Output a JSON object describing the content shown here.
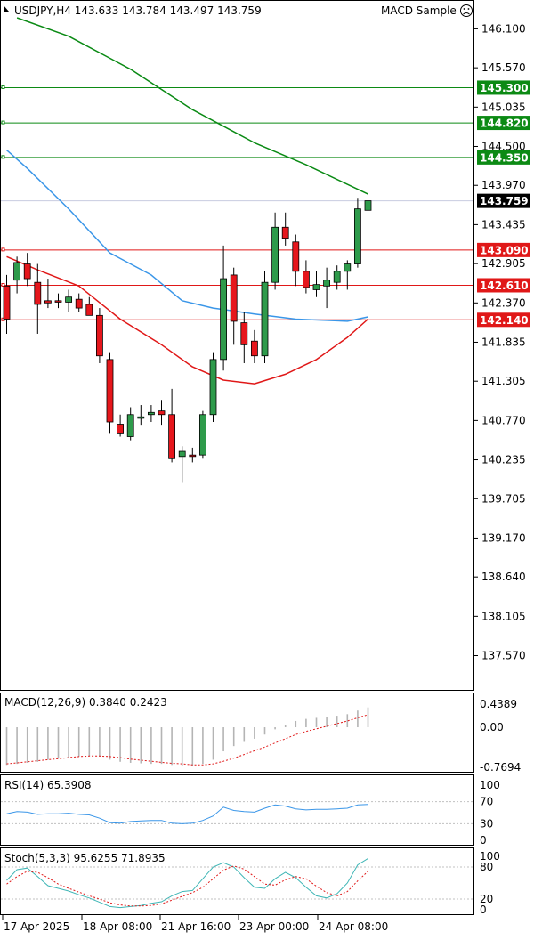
{
  "header": {
    "symbol_line": "USDJPY,H4  143.633 143.784 143.497 143.759",
    "expert_label": "MACD Sample",
    "face_icon": "frown-face-icon"
  },
  "colors": {
    "bull": "#2e9b4b",
    "bear": "#e6161c",
    "ma_green": "#0a8a14",
    "ma_blue": "#3a96e8",
    "ma_red": "#e01818",
    "level_green": "#0c8a14",
    "level_red": "#e01818",
    "last_tag_bg": "#000000",
    "macd_signal": "#e01818",
    "rsi_line": "#3a96e8",
    "stoch_main": "#3fb6b6",
    "stoch_signal": "#e01818"
  },
  "price_axis": {
    "ticks": [
      "146.100",
      "145.570",
      "145.035",
      "144.500",
      "143.970",
      "143.435",
      "142.905",
      "142.370",
      "141.835",
      "141.305",
      "140.770",
      "140.235",
      "139.705",
      "139.170",
      "138.640",
      "138.105",
      "137.570"
    ],
    "range": [
      137.14,
      146.42
    ]
  },
  "levels": {
    "green": [
      "145.300",
      "144.820",
      "144.350"
    ],
    "red": [
      "143.090",
      "142.610",
      "142.140"
    ],
    "last_price": "143.759"
  },
  "time_axis": [
    "17 Apr 2025",
    "18 Apr 08:00",
    "21 Apr 16:00",
    "23 Apr 00:00",
    "24 Apr 08:00"
  ],
  "macd_panel": {
    "label": "MACD(12,26,9) 0.3840 0.2423",
    "ticks": [
      "0.4389",
      "0.00",
      "-0.7694"
    ],
    "range": [
      -0.8,
      0.46
    ]
  },
  "rsi_panel": {
    "label": "RSI(14) 65.3908",
    "ticks": [
      "100",
      "70",
      "30",
      "0"
    ],
    "range": [
      0,
      100
    ]
  },
  "stoch_panel": {
    "label": "Stoch(5,3,3) 95.6255 71.8935",
    "ticks": [
      "100",
      "80",
      "20",
      "0"
    ],
    "range": [
      0,
      100
    ]
  },
  "chart_data": {
    "type": "candlestick",
    "title": "USDJPY,H4",
    "ohlc": [
      [
        142.6,
        142.75,
        141.95,
        142.15
      ],
      [
        142.68,
        143.0,
        142.5,
        142.92
      ],
      [
        142.9,
        143.05,
        142.6,
        142.7
      ],
      [
        142.65,
        142.9,
        141.95,
        142.35
      ],
      [
        142.4,
        142.7,
        142.3,
        142.37
      ],
      [
        142.4,
        142.5,
        142.3,
        142.38
      ],
      [
        142.38,
        142.55,
        142.25,
        142.45
      ],
      [
        142.42,
        142.5,
        142.25,
        142.3
      ],
      [
        142.35,
        142.45,
        142.2,
        142.2
      ],
      [
        142.2,
        142.3,
        141.55,
        141.65
      ],
      [
        141.6,
        141.7,
        140.6,
        140.75
      ],
      [
        140.72,
        140.85,
        140.55,
        140.6
      ],
      [
        140.55,
        140.95,
        140.5,
        140.85
      ],
      [
        140.8,
        140.98,
        140.7,
        140.82
      ],
      [
        140.85,
        140.98,
        140.75,
        140.88
      ],
      [
        140.9,
        141.05,
        140.7,
        140.85
      ],
      [
        140.85,
        141.2,
        140.2,
        140.25
      ],
      [
        140.28,
        140.42,
        139.92,
        140.35
      ],
      [
        140.3,
        140.4,
        140.2,
        140.28
      ],
      [
        140.3,
        140.9,
        140.25,
        140.85
      ],
      [
        140.85,
        141.7,
        140.75,
        141.6
      ],
      [
        141.6,
        143.15,
        141.45,
        142.7
      ],
      [
        142.75,
        142.85,
        141.8,
        142.12
      ],
      [
        142.1,
        142.25,
        141.55,
        141.8
      ],
      [
        141.85,
        142.0,
        141.55,
        141.65
      ],
      [
        141.65,
        142.8,
        141.55,
        142.65
      ],
      [
        142.65,
        143.6,
        142.55,
        143.4
      ],
      [
        143.4,
        143.6,
        143.15,
        143.25
      ],
      [
        143.2,
        143.3,
        142.6,
        142.8
      ],
      [
        142.8,
        142.95,
        142.5,
        142.58
      ],
      [
        142.55,
        142.8,
        142.45,
        142.62
      ],
      [
        142.6,
        142.85,
        142.3,
        142.68
      ],
      [
        142.65,
        142.88,
        142.55,
        142.8
      ],
      [
        142.8,
        142.95,
        142.55,
        142.9
      ],
      [
        142.9,
        143.8,
        142.85,
        143.65
      ],
      [
        143.63,
        143.78,
        143.5,
        143.76
      ]
    ],
    "ma_slow_green": [
      [
        1,
        146.25
      ],
      [
        6,
        146.0
      ],
      [
        12,
        145.55
      ],
      [
        18,
        145.0
      ],
      [
        24,
        144.55
      ],
      [
        29,
        144.25
      ],
      [
        35,
        143.85
      ]
    ],
    "ma_mid_blue": [
      [
        0,
        144.45
      ],
      [
        2,
        144.2
      ],
      [
        6,
        143.65
      ],
      [
        10,
        143.05
      ],
      [
        14,
        142.75
      ],
      [
        17,
        142.4
      ],
      [
        20,
        142.3
      ],
      [
        24,
        142.22
      ],
      [
        28,
        142.15
      ],
      [
        33,
        142.12
      ],
      [
        35,
        142.18
      ]
    ],
    "ma_fast_red": [
      [
        0,
        143.0
      ],
      [
        3,
        142.82
      ],
      [
        7,
        142.6
      ],
      [
        11,
        142.15
      ],
      [
        15,
        141.8
      ],
      [
        18,
        141.5
      ],
      [
        21,
        141.32
      ],
      [
        24,
        141.27
      ],
      [
        27,
        141.4
      ],
      [
        30,
        141.6
      ],
      [
        33,
        141.9
      ],
      [
        35,
        142.15
      ]
    ],
    "macd_hist": [
      -0.72,
      -0.7,
      -0.68,
      -0.66,
      -0.62,
      -0.6,
      -0.58,
      -0.56,
      -0.55,
      -0.56,
      -0.62,
      -0.66,
      -0.68,
      -0.69,
      -0.7,
      -0.7,
      -0.72,
      -0.74,
      -0.74,
      -0.7,
      -0.62,
      -0.46,
      -0.36,
      -0.28,
      -0.22,
      -0.14,
      -0.04,
      0.05,
      0.12,
      0.16,
      0.18,
      0.2,
      0.22,
      0.25,
      0.32,
      0.38
    ],
    "macd_signal": [
      -0.7,
      -0.68,
      -0.66,
      -0.64,
      -0.62,
      -0.6,
      -0.58,
      -0.56,
      -0.55,
      -0.55,
      -0.56,
      -0.58,
      -0.61,
      -0.63,
      -0.65,
      -0.67,
      -0.69,
      -0.7,
      -0.72,
      -0.72,
      -0.7,
      -0.65,
      -0.59,
      -0.52,
      -0.45,
      -0.38,
      -0.3,
      -0.22,
      -0.14,
      -0.08,
      -0.03,
      0.02,
      0.07,
      0.12,
      0.18,
      0.24
    ],
    "rsi": [
      48,
      52,
      51,
      47,
      48,
      48,
      49,
      47,
      46,
      40,
      32,
      31,
      34,
      35,
      36,
      36,
      31,
      30,
      31,
      36,
      44,
      60,
      54,
      52,
      51,
      58,
      64,
      62,
      57,
      55,
      56,
      56,
      57,
      58,
      64,
      65
    ],
    "stoch_main": [
      55,
      75,
      78,
      62,
      45,
      40,
      35,
      28,
      22,
      14,
      6,
      4,
      6,
      8,
      12,
      15,
      26,
      34,
      36,
      58,
      80,
      88,
      80,
      60,
      42,
      40,
      58,
      70,
      60,
      42,
      26,
      22,
      30,
      50,
      84,
      96
    ],
    "stoch_signal": [
      48,
      62,
      72,
      70,
      60,
      48,
      40,
      33,
      26,
      20,
      13,
      9,
      7,
      7,
      8,
      11,
      18,
      25,
      32,
      42,
      58,
      74,
      82,
      76,
      62,
      48,
      46,
      56,
      62,
      58,
      44,
      32,
      26,
      34,
      54,
      72
    ]
  }
}
